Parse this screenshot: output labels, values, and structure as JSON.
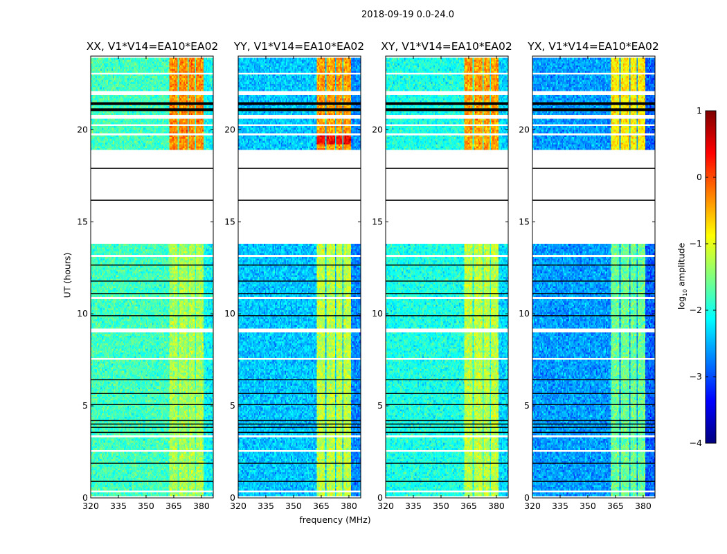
{
  "chart_data": {
    "type": "heatmap",
    "title": "2018-09-19 0.0-24.0",
    "xlabel": "frequency (MHz)",
    "ylabel": "UT (hours)",
    "xlim": [
      320,
      386.4
    ],
    "ylim": [
      0,
      24
    ],
    "xticks": [
      320,
      335,
      350,
      365,
      380
    ],
    "yticks": [
      0,
      5,
      10,
      15,
      20
    ],
    "panels": [
      {
        "title": "XX, V1*V14=EA10*EA02",
        "base_level": -1.8,
        "band_boost_upper": 1.5,
        "band_boost_lower": 0.5
      },
      {
        "title": "YY, V1*V14=EA10*EA02",
        "base_level": -2.4,
        "band_boost_upper": 2.0,
        "band_boost_lower": 1.2
      },
      {
        "title": "XY, V1*V14=EA10*EA02",
        "base_level": -2.0,
        "band_boost_upper": 1.6,
        "band_boost_lower": 0.8
      },
      {
        "title": "YX, V1*V14=EA10*EA02",
        "base_level": -2.6,
        "band_boost_upper": 1.8,
        "band_boost_lower": 1.0
      }
    ],
    "bright_subbands_mhz": [
      [
        362.7,
        367.2
      ],
      [
        368.0,
        372.2
      ],
      [
        372.9,
        376.6
      ],
      [
        377.3,
        381.2
      ]
    ],
    "flagged_white_hours": [
      [
        0,
        0.12
      ],
      [
        0.28,
        0.38
      ],
      [
        1.45,
        1.55
      ],
      [
        2.5,
        2.65
      ],
      [
        3.28,
        3.35
      ],
      [
        4.48,
        4.55
      ],
      [
        7.18,
        7.24
      ],
      [
        7.48,
        7.6
      ],
      [
        9.02,
        9.2
      ],
      [
        10.28,
        10.34
      ],
      [
        10.78,
        10.92
      ],
      [
        13.08,
        13.25
      ],
      [
        13.8,
        18.88
      ],
      [
        19.7,
        19.76
      ],
      [
        20.18,
        20.26
      ],
      [
        20.58,
        20.8
      ],
      [
        21.95,
        22.12
      ],
      [
        23.0,
        23.06
      ],
      [
        23.94,
        24
      ]
    ],
    "flagged_black_hours": [
      0.9,
      1.88,
      3.56,
      3.83,
      4.01,
      4.2,
      5.07,
      5.67,
      6.42,
      9.9,
      11.1,
      11.78,
      12.65,
      16.17,
      17.9,
      21.09,
      21.42
    ],
    "colorbar": {
      "label": "log",
      "label_sub": "10",
      "label_rest": " amplitude",
      "ticks": [
        1,
        0,
        -1,
        -2,
        -3,
        -4
      ],
      "range": [
        -4,
        1
      ],
      "colormap": "jet"
    }
  }
}
